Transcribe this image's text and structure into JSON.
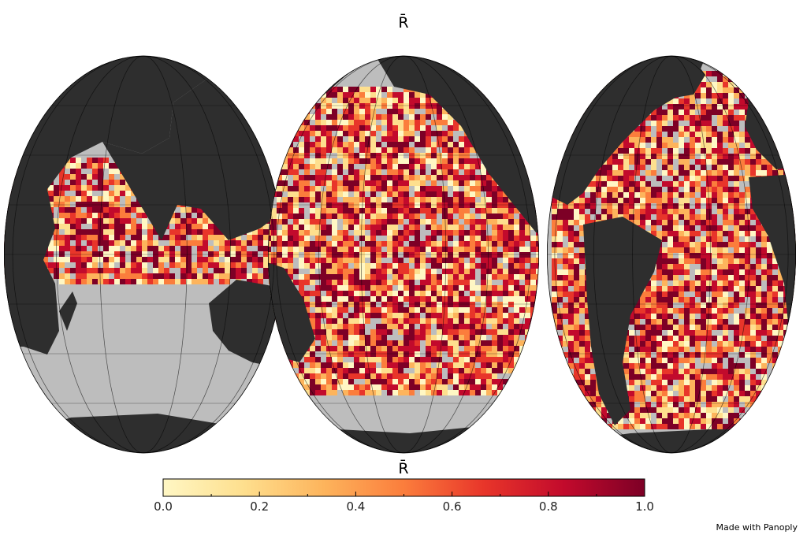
{
  "title": "R̄",
  "colorbar": {
    "label": "R̄",
    "min": 0.0,
    "max": 1.0,
    "ticks": [
      "0.0",
      "0.2",
      "0.4",
      "0.6",
      "0.8",
      "1.0"
    ],
    "colors": [
      "#fff7c4",
      "#fedf8e",
      "#fdb45c",
      "#fb7d3c",
      "#e8352a",
      "#c20a2c",
      "#7d0026"
    ]
  },
  "map": {
    "projection": "interrupted goode homolosine",
    "land_color": "#2e2e2e",
    "nodata_color": "#bdbdbd",
    "graticule": true
  },
  "credit": "Made with Panoply"
}
